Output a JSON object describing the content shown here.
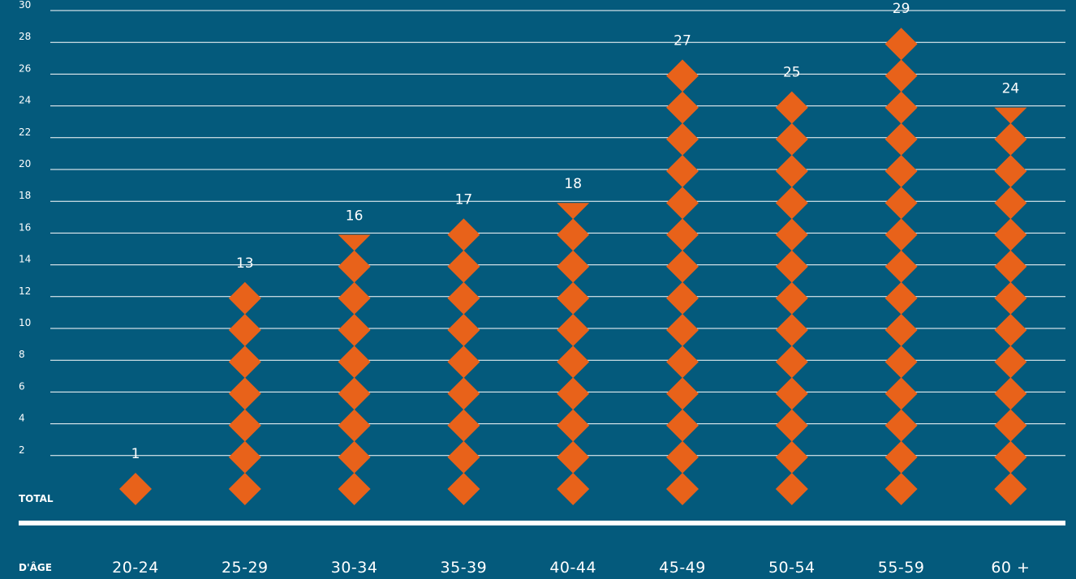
{
  "chart_data": {
    "type": "bar",
    "categories": [
      "20-24",
      "25-29",
      "30-34",
      "35-39",
      "40-44",
      "45-49",
      "50-54",
      "55-59",
      "60 +"
    ],
    "values": [
      1,
      13,
      16,
      17,
      18,
      27,
      25,
      29,
      24
    ],
    "title": "",
    "xlabel": "D'ÂGE",
    "ylabel": "",
    "ylim": [
      0,
      30
    ],
    "yticks": [
      2,
      4,
      6,
      8,
      10,
      12,
      14,
      16,
      18,
      20,
      22,
      24,
      26,
      28,
      30
    ],
    "baseline_label": "TOTAL",
    "grid": true,
    "legend": "none",
    "mark_shape": "diamond",
    "colors": {
      "background": "#045A7C",
      "mark": "#E8621A",
      "text": "#FFFFFF",
      "gridline": "#FFFFFF"
    }
  }
}
